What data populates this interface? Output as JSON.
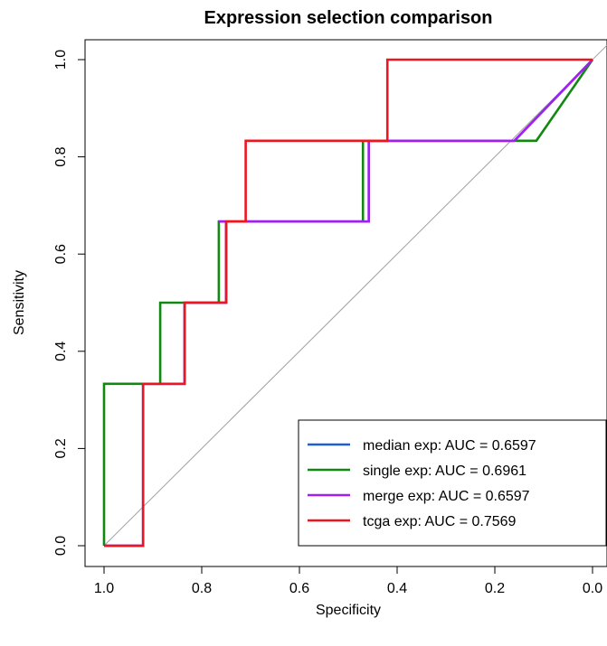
{
  "chart_data": {
    "type": "line",
    "title": "Expression selection comparison",
    "xlabel": "Specificity",
    "ylabel": "Sensitivity",
    "xlim": [
      1.0,
      0.0
    ],
    "ylim": [
      0.0,
      1.0
    ],
    "x_ticks": [
      "1.0",
      "0.8",
      "0.6",
      "0.4",
      "0.2",
      "0.0"
    ],
    "y_ticks": [
      "0.0",
      "0.2",
      "0.4",
      "0.6",
      "0.8",
      "1.0"
    ],
    "reference_line": {
      "from": [
        1.0,
        0.0
      ],
      "to": [
        0.0,
        1.0
      ],
      "color": "#a0a0a0"
    },
    "legend_position": "bottom-right",
    "series": [
      {
        "name": "median exp: AUC = 0.6597",
        "color": "#1f5fd6",
        "x": [
          1.0,
          0.92,
          0.92,
          0.835,
          0.835,
          0.75,
          0.75,
          0.765,
          0.458,
          0.458,
          0.16,
          0.0
        ],
        "y": [
          0.0,
          0.0,
          0.333,
          0.333,
          0.5,
          0.5,
          0.667,
          0.667,
          0.667,
          0.833,
          0.833,
          1.0
        ]
      },
      {
        "name": "single exp: AUC = 0.6961",
        "color": "#118811",
        "x": [
          1.0,
          1.0,
          0.885,
          0.885,
          0.765,
          0.765,
          0.47,
          0.47,
          0.115,
          0.0
        ],
        "y": [
          0.0,
          0.333,
          0.333,
          0.5,
          0.5,
          0.667,
          0.667,
          0.833,
          0.833,
          1.0
        ]
      },
      {
        "name": "merge exp: AUC = 0.6597",
        "color": "#a020f0",
        "x": [
          1.0,
          0.92,
          0.92,
          0.835,
          0.835,
          0.75,
          0.75,
          0.765,
          0.458,
          0.458,
          0.16,
          0.0
        ],
        "y": [
          0.0,
          0.0,
          0.333,
          0.333,
          0.5,
          0.5,
          0.667,
          0.667,
          0.667,
          0.833,
          0.833,
          1.0
        ]
      },
      {
        "name": "tcga exp: AUC = 0.7569",
        "color": "#f0141e",
        "x": [
          1.0,
          0.92,
          0.92,
          0.835,
          0.835,
          0.75,
          0.75,
          0.71,
          0.71,
          0.42,
          0.42,
          0.0
        ],
        "y": [
          0.0,
          0.0,
          0.333,
          0.333,
          0.5,
          0.5,
          0.667,
          0.667,
          0.833,
          0.833,
          1.0,
          1.0
        ]
      }
    ]
  }
}
